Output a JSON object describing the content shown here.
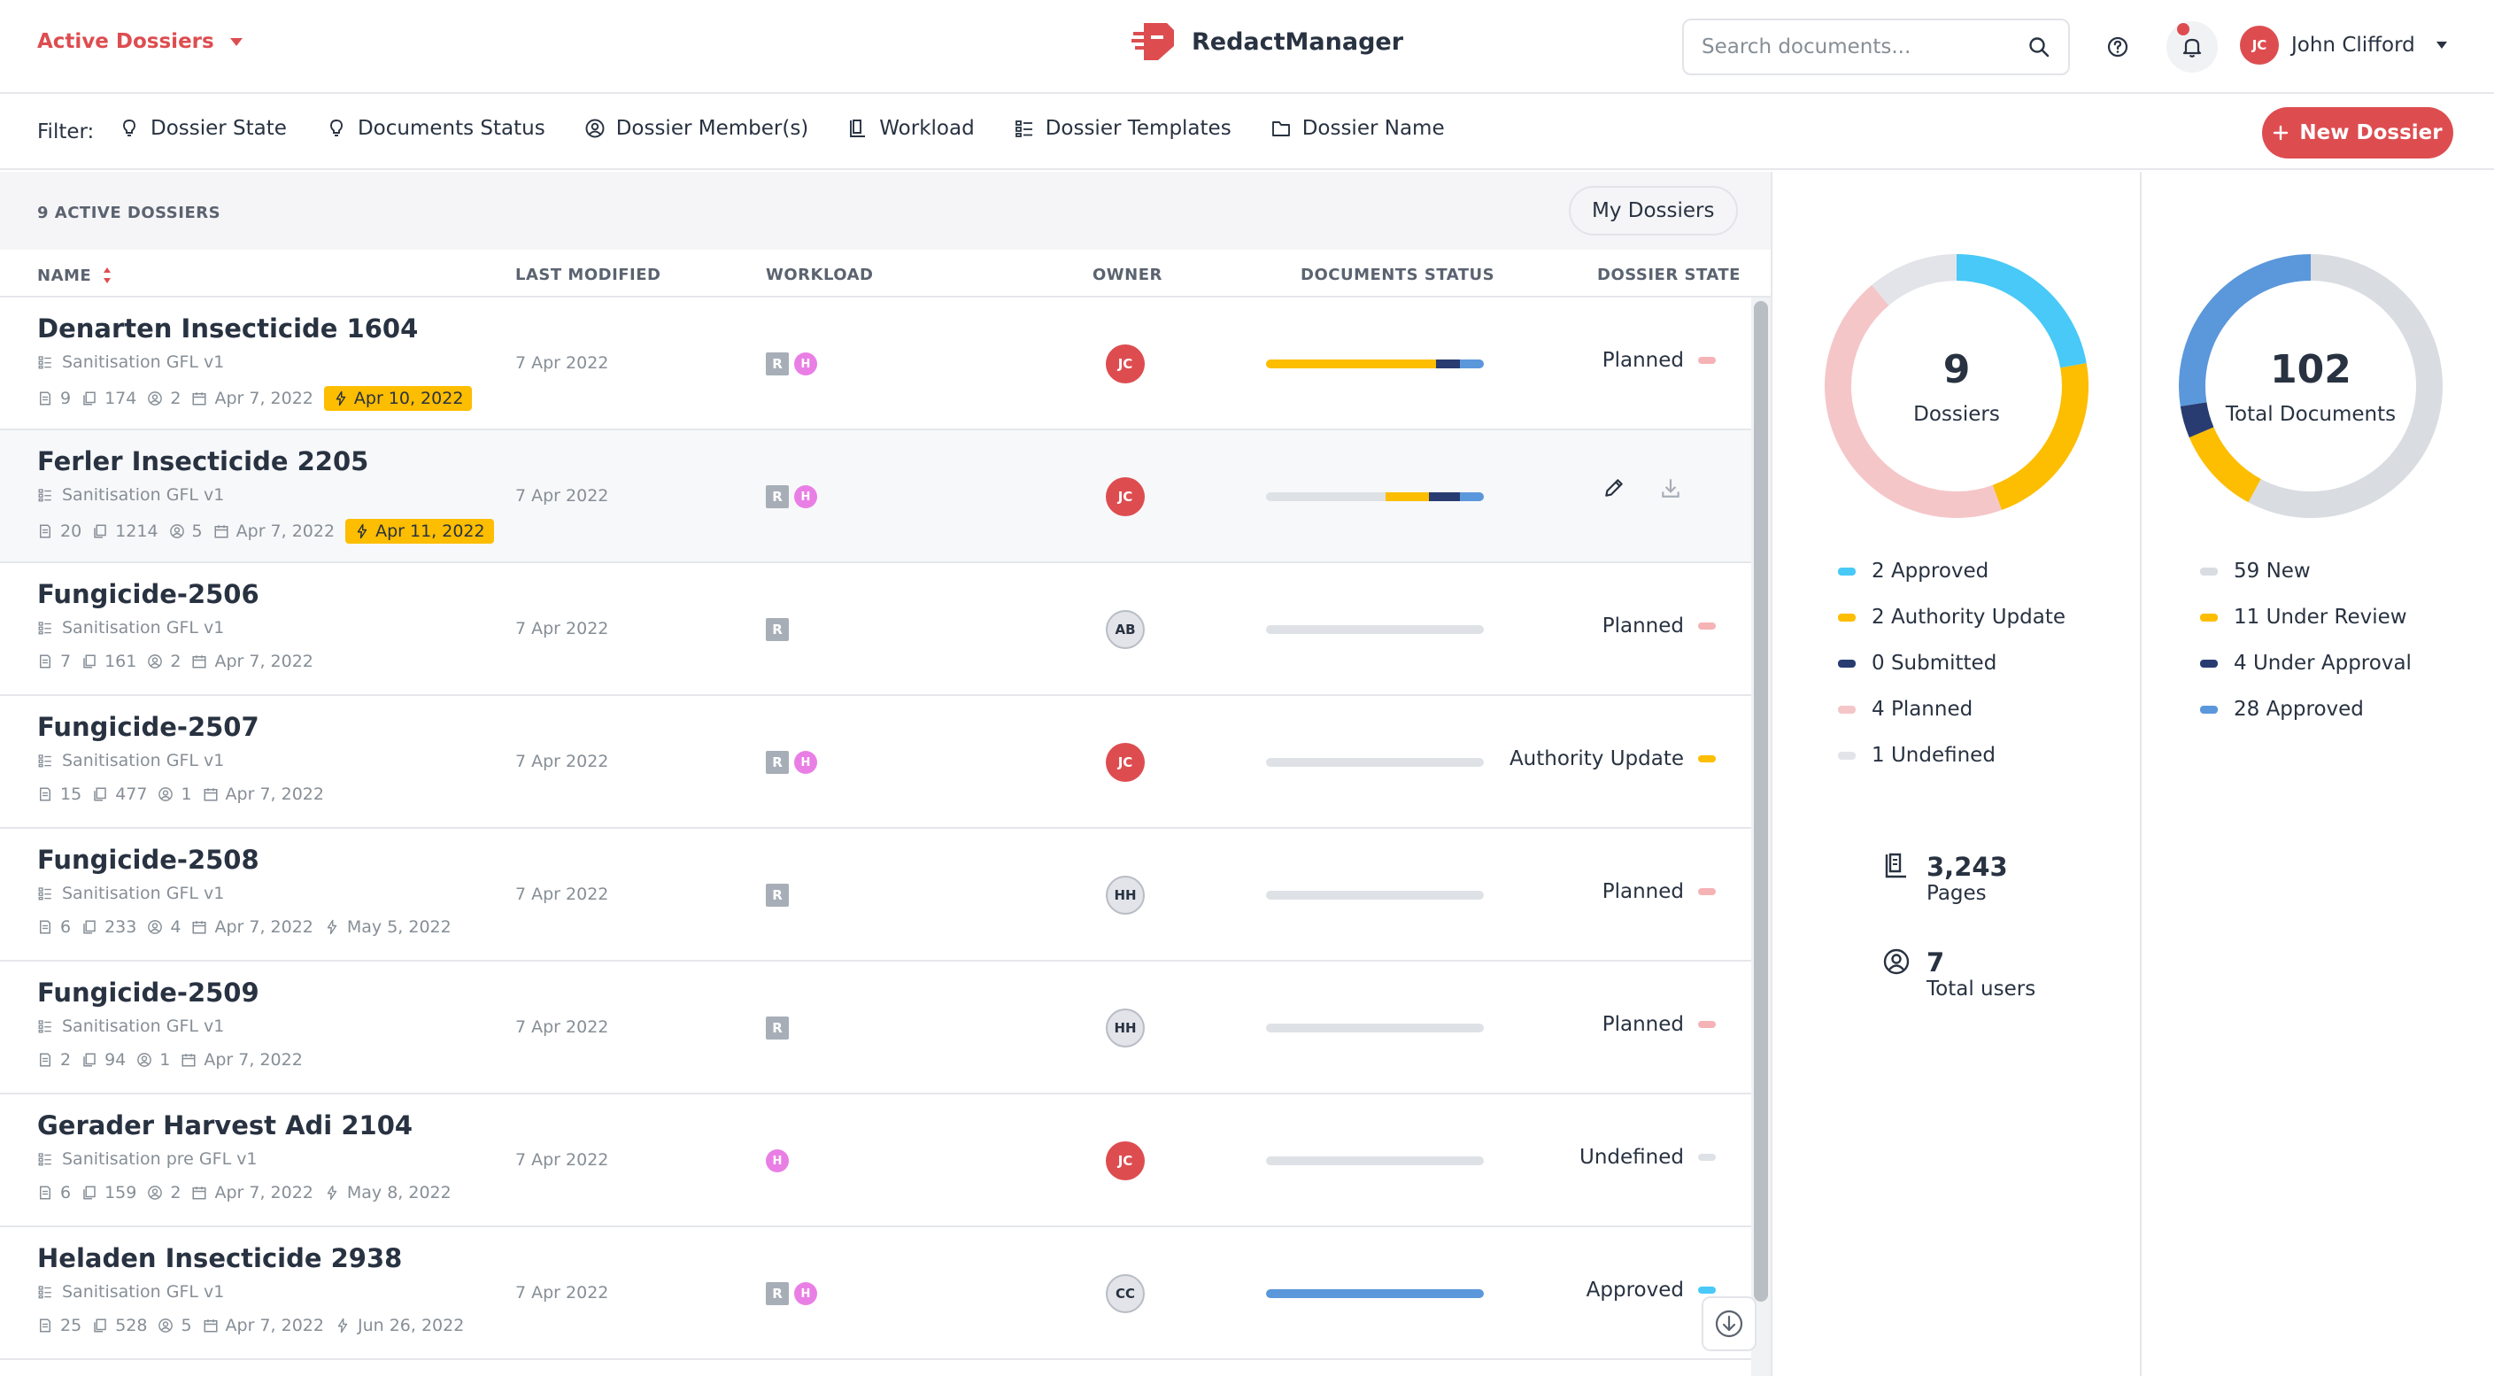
{
  "header": {
    "nav_label": "Active Dossiers",
    "app_name": "RedactManager",
    "search_placeholder": "Search documents...",
    "user": {
      "initials": "JC",
      "name": "John Clifford"
    }
  },
  "filterbar": {
    "label": "Filter:",
    "filters": [
      {
        "label": "Dossier State",
        "icon": "lightbulb-icon"
      },
      {
        "label": "Documents Status",
        "icon": "lightbulb-icon"
      },
      {
        "label": "Dossier Member(s)",
        "icon": "user-circle-icon"
      },
      {
        "label": "Workload",
        "icon": "workload-icon"
      },
      {
        "label": "Dossier Templates",
        "icon": "template-icon"
      },
      {
        "label": "Dossier Name",
        "icon": "folder-icon"
      }
    ],
    "new_button": "New Dossier"
  },
  "list": {
    "count_label": "9 ACTIVE DOSSIERS",
    "my_dossiers": "My Dossiers",
    "columns": {
      "name": "NAME",
      "modified": "LAST MODIFIED",
      "workload": "WORKLOAD",
      "owner": "OWNER",
      "docstatus": "DOCUMENTS STATUS",
      "state": "DOSSIER STATE"
    },
    "rows": [
      {
        "name": "Denarten Insecticide 1604",
        "template": "Sanitisation GFL v1",
        "docs": "9",
        "pages": "174",
        "members": "2",
        "created": "Apr 7, 2022",
        "due": "Apr 10, 2022",
        "due_highlight": true,
        "modified": "7 Apr 2022",
        "workload": [
          "R",
          "H"
        ],
        "owner": "JC",
        "owner_style": "red",
        "state": "Planned",
        "state_color": "#f5b3b6",
        "bar": [
          {
            "c": "#fdbd00",
            "w": 0.78
          },
          {
            "c": "#283c71",
            "w": 0.11
          },
          {
            "c": "#5b97db",
            "w": 0.11
          }
        ]
      },
      {
        "name": "Ferler Insecticide 2205",
        "template": "Sanitisation GFL v1",
        "docs": "20",
        "pages": "1214",
        "members": "5",
        "created": "Apr 7, 2022",
        "due": "Apr 11, 2022",
        "due_highlight": true,
        "modified": "7 Apr 2022",
        "workload": [
          "R",
          "H"
        ],
        "owner": "JC",
        "owner_style": "red",
        "state": "",
        "state_color": "",
        "hovered": true,
        "bar": [
          {
            "c": "#dee2e6",
            "w": 0.55
          },
          {
            "c": "#fdbd00",
            "w": 0.2
          },
          {
            "c": "#283c71",
            "w": 0.14
          },
          {
            "c": "#5b97db",
            "w": 0.11
          }
        ]
      },
      {
        "name": "Fungicide-2506",
        "template": "Sanitisation GFL v1",
        "docs": "7",
        "pages": "161",
        "members": "2",
        "created": "Apr 7, 2022",
        "due": "",
        "modified": "7 Apr 2022",
        "workload": [
          "R"
        ],
        "owner": "AB",
        "owner_style": "grey",
        "state": "Planned",
        "state_color": "#f5b3b6",
        "bar": []
      },
      {
        "name": "Fungicide-2507",
        "template": "Sanitisation GFL v1",
        "docs": "15",
        "pages": "477",
        "members": "1",
        "created": "Apr 7, 2022",
        "due": "",
        "modified": "7 Apr 2022",
        "workload": [
          "R",
          "H"
        ],
        "owner": "JC",
        "owner_style": "red",
        "state": "Authority Update",
        "state_color": "#fdbd00",
        "bar": []
      },
      {
        "name": "Fungicide-2508",
        "template": "Sanitisation GFL v1",
        "docs": "6",
        "pages": "233",
        "members": "4",
        "created": "Apr 7, 2022",
        "due": "May 5, 2022",
        "modified": "7 Apr 2022",
        "workload": [
          "R"
        ],
        "owner": "HH",
        "owner_style": "grey",
        "state": "Planned",
        "state_color": "#f5b3b6",
        "bar": []
      },
      {
        "name": "Fungicide-2509",
        "template": "Sanitisation GFL v1",
        "docs": "2",
        "pages": "94",
        "members": "1",
        "created": "Apr 7, 2022",
        "due": "",
        "modified": "7 Apr 2022",
        "workload": [
          "R"
        ],
        "owner": "HH",
        "owner_style": "grey",
        "state": "Planned",
        "state_color": "#f5b3b6",
        "bar": []
      },
      {
        "name": "Gerader Harvest Adi 2104",
        "template": "Sanitisation pre GFL v1",
        "docs": "6",
        "pages": "159",
        "members": "2",
        "created": "Apr 7, 2022",
        "due": "May 8, 2022",
        "modified": "7 Apr 2022",
        "workload": [
          "H"
        ],
        "owner": "JC",
        "owner_style": "red",
        "state": "Undefined",
        "state_color": "#dee2e6",
        "bar": []
      },
      {
        "name": "Heladen Insecticide 2938",
        "template": "Sanitisation GFL v1",
        "docs": "25",
        "pages": "528",
        "members": "5",
        "created": "Apr 7, 2022",
        "due": "Jun 26, 2022",
        "modified": "7 Apr 2022",
        "workload": [
          "R",
          "H"
        ],
        "owner": "CC",
        "owner_style": "grey",
        "state": "Approved",
        "state_color": "#48c9f7",
        "bar": [
          {
            "c": "#5b97db",
            "w": 1.0
          }
        ]
      }
    ]
  },
  "stats": {
    "dossiers": {
      "total": "9",
      "label": "Dossiers",
      "legend": [
        {
          "label": "2 Approved",
          "color": "#48c9f7",
          "value": 2
        },
        {
          "label": "2 Authority Update",
          "color": "#fdbd00",
          "value": 2
        },
        {
          "label": "0 Submitted",
          "color": "#283c71",
          "value": 0
        },
        {
          "label": "4 Planned",
          "color": "#f5c6c8",
          "value": 4
        },
        {
          "label": "1 Undefined",
          "color": "#e2e4e9",
          "value": 1
        }
      ]
    },
    "documents": {
      "total": "102",
      "label": "Total Documents",
      "legend": [
        {
          "label": "59 New",
          "color": "#d9dce1",
          "value": 59
        },
        {
          "label": "11 Under Review",
          "color": "#fdbd00",
          "value": 11
        },
        {
          "label": "4 Under Approval",
          "color": "#283c71",
          "value": 4
        },
        {
          "label": "28 Approved",
          "color": "#5b97db",
          "value": 28
        }
      ]
    },
    "pages": {
      "value": "3,243",
      "label": "Pages"
    },
    "users": {
      "value": "7",
      "label": "Total users"
    }
  }
}
